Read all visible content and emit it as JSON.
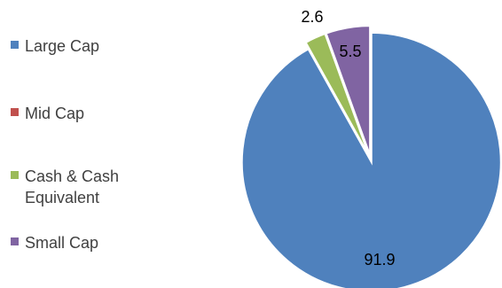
{
  "chart_data": {
    "type": "pie",
    "categories": [
      "Large Cap",
      "Mid Cap",
      "Cash & Cash Equivalent",
      "Small Cap"
    ],
    "values": [
      91.9,
      0,
      2.6,
      5.5
    ],
    "data_labels": [
      "91.9",
      "",
      "2.6",
      "5.5"
    ],
    "colors": [
      "#4F81BD",
      "#C0504D",
      "#9BBB59",
      "#8064A2"
    ],
    "legend_position": "left",
    "slice_order_clockwise_from_top": [
      "Large Cap",
      "Mid Cap",
      "Cash & Cash Equivalent",
      "Small Cap"
    ],
    "exploded": true
  }
}
